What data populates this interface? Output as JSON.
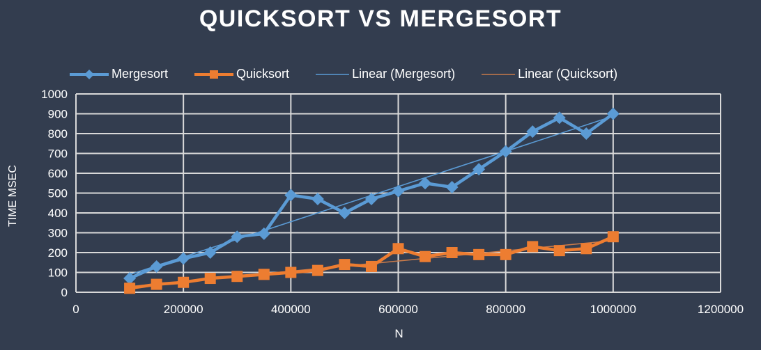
{
  "chart_data": {
    "type": "line",
    "title": "QUICKSORT VS MERGESORT",
    "xlabel": "N",
    "ylabel": "TIME MSEC",
    "xlim": [
      0,
      1200000
    ],
    "ylim": [
      0,
      1000
    ],
    "x_ticks": [
      "0",
      "200000",
      "400000",
      "600000",
      "800000",
      "1000000",
      "1200000"
    ],
    "y_ticks": [
      "0",
      "100",
      "200",
      "300",
      "400",
      "500",
      "600",
      "700",
      "800",
      "900",
      "1000"
    ],
    "grid": true,
    "legend_position": "top",
    "x": [
      100000,
      150000,
      200000,
      250000,
      300000,
      350000,
      400000,
      450000,
      500000,
      550000,
      600000,
      650000,
      700000,
      750000,
      800000,
      850000,
      900000,
      950000,
      1000000
    ],
    "series": [
      {
        "name": "Mergesort",
        "marker": "diamond",
        "color": "#5b9bd5",
        "values": [
          70,
          130,
          170,
          200,
          280,
          295,
          490,
          470,
          400,
          470,
          510,
          550,
          530,
          620,
          710,
          810,
          880,
          800,
          900
        ]
      },
      {
        "name": "Quicksort",
        "marker": "square",
        "color": "#ed7d31",
        "values": [
          20,
          40,
          50,
          70,
          80,
          90,
          100,
          110,
          140,
          130,
          220,
          180,
          200,
          190,
          190,
          230,
          210,
          220,
          280
        ]
      }
    ],
    "trendlines": [
      {
        "name": "Linear (Mergesort)",
        "type": "linear",
        "color": "#5b9bd5"
      },
      {
        "name": "Linear (Quicksort)",
        "type": "linear",
        "color": "#c87a4a"
      }
    ]
  },
  "legend": {
    "items": [
      {
        "label": "Mergesort"
      },
      {
        "label": "Quicksort"
      },
      {
        "label": "Linear (Mergesort)"
      },
      {
        "label": "Linear (Quicksort)"
      }
    ]
  },
  "colors": {
    "background": "#333d4f",
    "grid": "#d9d9d9",
    "mergesort": "#5b9bd5",
    "quicksort": "#ed7d31",
    "quicksort_trend": "#c87a4a"
  }
}
